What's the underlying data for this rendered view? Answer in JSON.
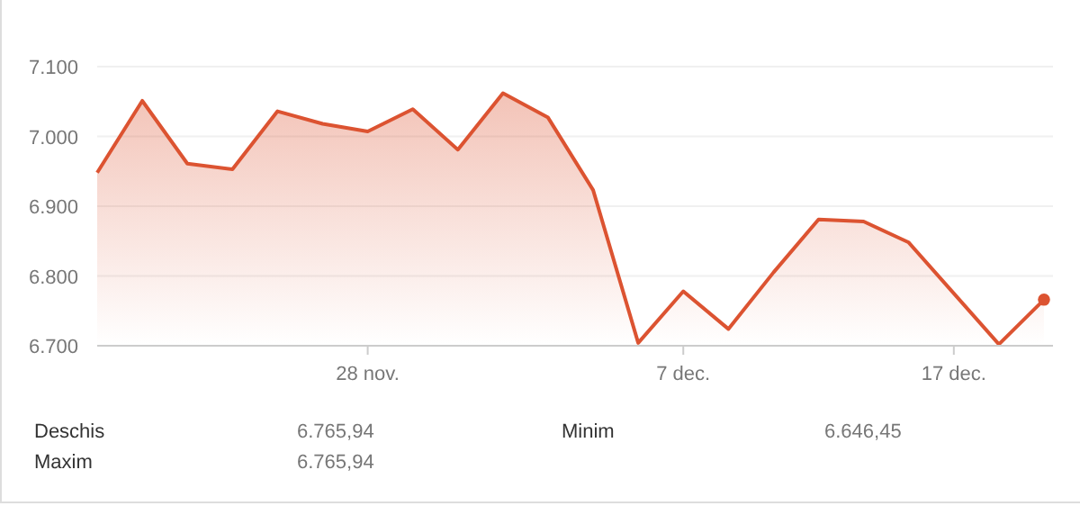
{
  "chart_data": {
    "type": "area",
    "categories": [
      null,
      null,
      null,
      null,
      null,
      null,
      "28 nov.",
      null,
      null,
      null,
      null,
      null,
      null,
      "7 dec.",
      null,
      null,
      null,
      null,
      null,
      "17 dec.",
      null,
      null
    ],
    "series": [
      {
        "color": "#dc5331",
        "values": [
          6948,
          7051,
          6961,
          6953,
          7036,
          7018,
          7007,
          7039,
          6981,
          7062,
          7027,
          6923,
          6704,
          6778,
          6724,
          6805,
          6881,
          6878,
          6848,
          6775,
          6702,
          6766
        ]
      },
      {
        "type": "scatter",
        "color": "#dc5331",
        "marker": "circle",
        "values": [
          null,
          null,
          null,
          null,
          null,
          null,
          null,
          null,
          null,
          null,
          null,
          null,
          null,
          null,
          null,
          null,
          null,
          null,
          null,
          null,
          null,
          6766
        ]
      }
    ],
    "ylim": [
      6700,
      7100
    ],
    "yticks": [
      {
        "value": 6700,
        "label": "6.700"
      },
      {
        "value": 6800,
        "label": "6.800"
      },
      {
        "value": 6900,
        "label": "6.900"
      },
      {
        "value": 7000,
        "label": "7.000"
      },
      {
        "value": 7100,
        "label": "7.100"
      }
    ],
    "grid": "y",
    "annotations": [
      "Deschis",
      "6.765,94",
      "Minim",
      "6.646,45",
      "Maxim",
      "6.765,94"
    ]
  }
}
